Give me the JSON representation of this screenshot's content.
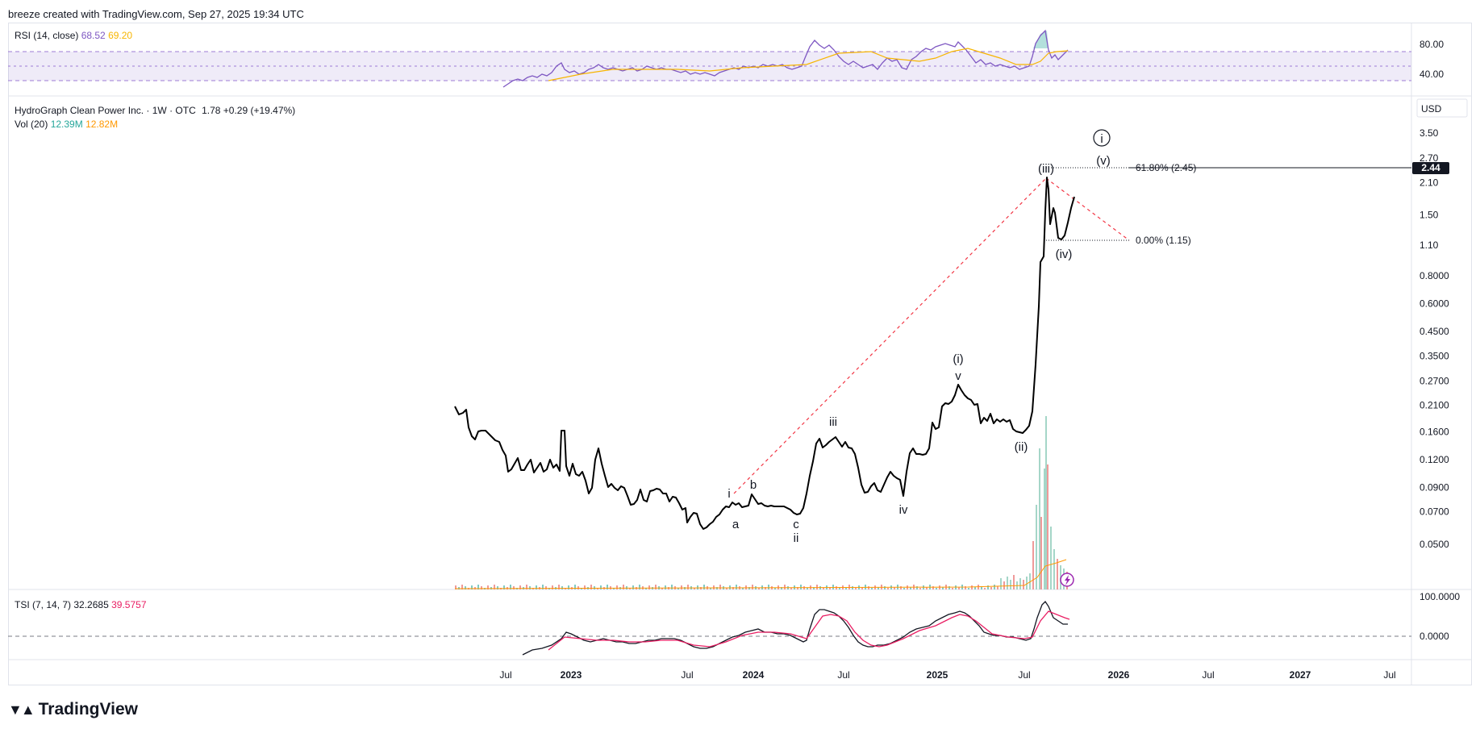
{
  "header": {
    "attribution": "breeze created with TradingView.com, Sep 27, 2025 19:34 UTC"
  },
  "brand": {
    "name": "TradingView",
    "logo_icon": "tradingview-logo-icon"
  },
  "rsi": {
    "name": "RSI (14, close)",
    "value": "68.52",
    "ma_value": "69.20",
    "ticks": [
      "80.00",
      "40.00"
    ],
    "band_color": "#7e57c2",
    "line_color": "#7e57c2",
    "ma_color": "#f7b500"
  },
  "main": {
    "symbol": "HydroGraph Clean Power Inc. · 1W · OTC",
    "last": "1.78",
    "change": "+0.29 (+19.47%)",
    "vol_name": "Vol (20)",
    "vol_value": "12.39M",
    "vol_ma": "12.82M",
    "currency": "USD",
    "price_tag": "2.44",
    "yticks": [
      "3.50",
      "2.70",
      "2.10",
      "1.50",
      "1.10",
      "0.8000",
      "0.6000",
      "0.4500",
      "0.3500",
      "0.2700",
      "0.2100",
      "0.1600",
      "0.1200",
      "0.0900",
      "0.0700",
      "0.0500"
    ],
    "fib_618": "61.80% (2.45)",
    "fib_0": "0.00% (1.15)",
    "waves": [
      "i",
      "a",
      "b",
      "c",
      "ii",
      "iii",
      "iv",
      "(i)",
      "v",
      "(ii)",
      "(iii)",
      "(iv)",
      "(v)",
      "i"
    ],
    "icon": "lightning-icon"
  },
  "tsi": {
    "name": "TSI (7, 14, 7)",
    "value": "32.2685",
    "signal": "39.5757",
    "ticks": [
      "100.0000",
      "0.0000"
    ],
    "line_color": "#131722",
    "signal_color": "#e91e63"
  },
  "time_axis": {
    "labels": [
      "Jul",
      "2023",
      "Jul",
      "2024",
      "Jul",
      "2025",
      "Jul",
      "2026",
      "Jul",
      "2027",
      "Jul"
    ],
    "bold": [
      false,
      true,
      false,
      true,
      false,
      true,
      false,
      true,
      false,
      true,
      false
    ]
  },
  "chart_data": {
    "type": "line",
    "title": "HydroGraph Clean Power Inc. · 1W · OTC",
    "yscale": "log",
    "ylim": [
      0.035,
      4.0
    ],
    "x": [
      "2022-06",
      "2022-09",
      "2022-12",
      "2023-03",
      "2023-06",
      "2023-09",
      "2023-11",
      "2024-01",
      "2024-03",
      "2024-05",
      "2024-07",
      "2024-09",
      "2024-11",
      "2025-01",
      "2025-03",
      "2025-06",
      "2025-07",
      "2025-08",
      "2025-09"
    ],
    "series": [
      {
        "values": [
          0.2,
          0.15,
          0.12,
          0.11,
          0.09,
          0.085,
          0.06,
          0.08,
          0.07,
          0.15,
          0.1,
          0.09,
          0.13,
          0.2,
          0.19,
          0.165,
          0.8,
          2.1,
          1.78
        ]
      }
    ],
    "fib_levels": [
      {
        "label": "61.80%",
        "value": 2.45
      },
      {
        "label": "0.00%",
        "value": 1.15
      }
    ],
    "rsi_last": 68.52,
    "rsi_ma_last": 69.2,
    "tsi_last": 32.2685,
    "tsi_signal_last": 39.5757,
    "volume_last": "12.39M",
    "volume_ma_last": "12.82M"
  }
}
